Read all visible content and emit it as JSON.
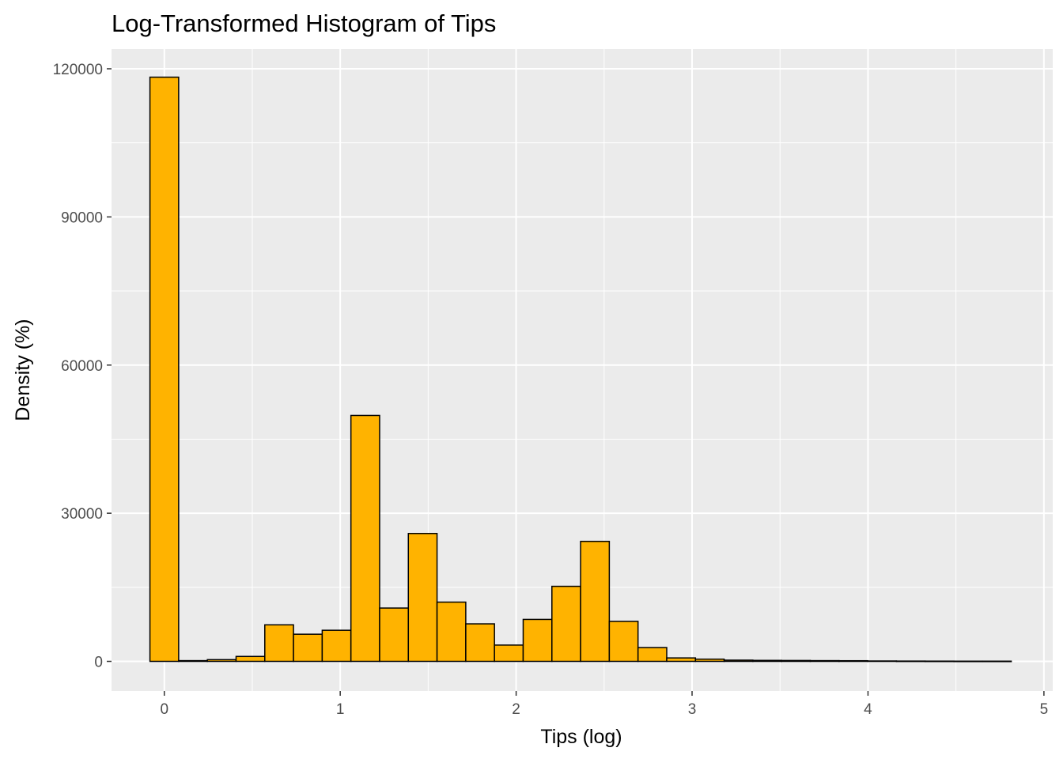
{
  "chart_data": {
    "type": "bar",
    "title": "Log-Transformed Histogram of Tips",
    "xlabel": "Tips (log)",
    "ylabel": "Density (%)",
    "xlim": [
      -0.3,
      5.05
    ],
    "ylim": [
      -6000,
      124000
    ],
    "x_ticks": [
      0,
      1,
      2,
      3,
      4,
      5
    ],
    "x_tick_labels": [
      "0",
      "1",
      "2",
      "3",
      "4",
      "5"
    ],
    "y_ticks": [
      0,
      30000,
      60000,
      90000,
      120000
    ],
    "y_tick_labels": [
      "0",
      "30000",
      "60000",
      "90000",
      "120000"
    ],
    "grid": true,
    "legend": "none",
    "bin_width": 0.1632,
    "bins": [
      {
        "x": 0.0,
        "value": 118300
      },
      {
        "x": 0.1632,
        "value": 150
      },
      {
        "x": 0.3264,
        "value": 350
      },
      {
        "x": 0.4896,
        "value": 1000
      },
      {
        "x": 0.6528,
        "value": 7400
      },
      {
        "x": 0.816,
        "value": 5500
      },
      {
        "x": 0.9792,
        "value": 6300
      },
      {
        "x": 1.1424,
        "value": 49800
      },
      {
        "x": 1.3056,
        "value": 10800
      },
      {
        "x": 1.4688,
        "value": 25900
      },
      {
        "x": 1.632,
        "value": 12000
      },
      {
        "x": 1.7952,
        "value": 7600
      },
      {
        "x": 1.9584,
        "value": 3300
      },
      {
        "x": 2.1216,
        "value": 8500
      },
      {
        "x": 2.2848,
        "value": 15200
      },
      {
        "x": 2.448,
        "value": 24300
      },
      {
        "x": 2.6112,
        "value": 8100
      },
      {
        "x": 2.7744,
        "value": 2800
      },
      {
        "x": 2.9376,
        "value": 700
      },
      {
        "x": 3.1008,
        "value": 450
      },
      {
        "x": 3.264,
        "value": 250
      },
      {
        "x": 3.4272,
        "value": 200
      },
      {
        "x": 3.5904,
        "value": 180
      },
      {
        "x": 3.7536,
        "value": 150
      },
      {
        "x": 3.9168,
        "value": 130
      },
      {
        "x": 4.08,
        "value": 80
      },
      {
        "x": 4.2432,
        "value": 60
      },
      {
        "x": 4.4064,
        "value": 50
      },
      {
        "x": 4.5696,
        "value": 40
      },
      {
        "x": 4.7328,
        "value": 40
      }
    ],
    "colors": {
      "bar_fill": "#FFB300",
      "bar_stroke": "#000000",
      "panel_background": "#EBEBEB",
      "grid": "#FFFFFF"
    }
  }
}
